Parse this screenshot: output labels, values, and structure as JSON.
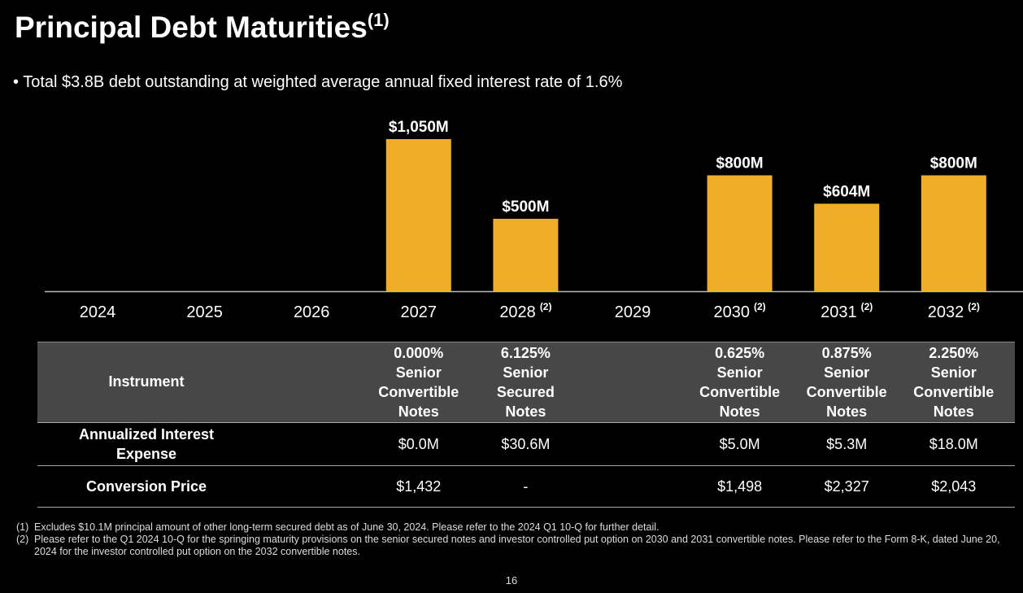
{
  "chart_data": {
    "type": "bar",
    "title": "Principal Debt Maturities",
    "title_note": "(1)",
    "subtitle": "Total $3.8B debt outstanding at weighted average annual fixed interest rate of 1.6%",
    "categories": [
      "2024",
      "2025",
      "2026",
      "2027",
      "2028",
      "2029",
      "2030",
      "2031",
      "2032"
    ],
    "category_notes": [
      null,
      null,
      null,
      null,
      "(2)",
      null,
      "(2)",
      "(2)",
      "(2)"
    ],
    "values": [
      null,
      null,
      null,
      1050,
      500,
      null,
      800,
      604,
      800
    ],
    "value_labels": [
      null,
      null,
      null,
      "$1,050M",
      "$500M",
      null,
      "$800M",
      "$604M",
      "$800M"
    ],
    "color": "#f0ae28"
  },
  "table": {
    "header_label": "Instrument",
    "header": [
      null,
      null,
      null,
      "0.000% Senior Convertible Notes",
      "6.125% Senior Secured Notes",
      null,
      "0.625% Senior Convertible Notes",
      "0.875% Senior Convertible Notes",
      "2.250% Senior Convertible Notes"
    ],
    "rows": [
      {
        "label": "Annualized Interest Expense",
        "cells": [
          null,
          null,
          null,
          "$0.0M",
          "$30.6M",
          null,
          "$5.0M",
          "$5.3M",
          "$18.0M"
        ]
      },
      {
        "label": "Conversion Price",
        "cells": [
          null,
          null,
          null,
          "$1,432",
          "-",
          null,
          "$1,498",
          "$2,327",
          "$2,043"
        ]
      }
    ]
  },
  "footnotes": [
    {
      "marker": "(1)",
      "text": "Excludes $10.1M principal amount of other long-term secured debt as of June 30, 2024. Please refer to the 2024 Q1 10-Q for further detail."
    },
    {
      "marker": "(2)",
      "text": "Please refer to the Q1 2024 10-Q for the springing maturity provisions on the senior secured notes and investor controlled put option on 2030 and 2031 convertible notes. Please refer to the Form 8-K, dated June 20, 2024 for the investor controlled put option on the 2032 convertible notes."
    }
  ],
  "page_number": "16"
}
